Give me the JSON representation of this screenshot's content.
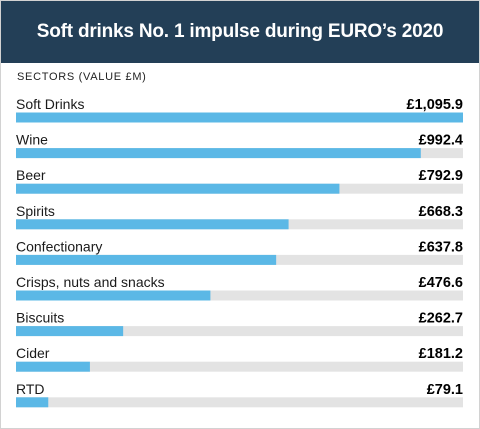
{
  "title": "Soft drinks No. 1 impulse during EURO’s 2020",
  "chart_data": {
    "type": "bar",
    "orientation": "horizontal",
    "title": "Soft drinks No. 1 impulse during EURO’s 2020",
    "axis_label": "SECTORS (VALUE £M)",
    "categories": [
      "Soft Drinks",
      "Wine",
      "Beer",
      "Spirits",
      "Confectionary",
      "Crisps, nuts and snacks",
      "Biscuits",
      "Cider",
      "RTD"
    ],
    "values": [
      1095.9,
      992.4,
      792.9,
      668.3,
      637.8,
      476.6,
      262.7,
      181.2,
      79.1
    ],
    "value_labels": [
      "£1,095.9",
      "£992.4",
      "£792.9",
      "£668.3",
      "£637.8",
      "£476.6",
      "£262.7",
      "£181.2",
      "£79.1"
    ],
    "xlim": [
      0,
      1095.9
    ],
    "colors": {
      "bar": "#5bb8e6",
      "track": "#e3e3e3",
      "header": "#233f57"
    }
  }
}
